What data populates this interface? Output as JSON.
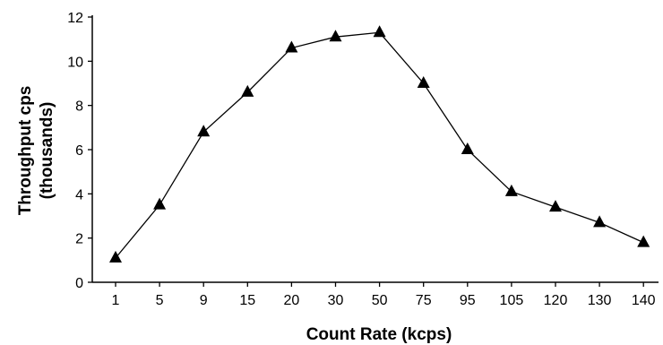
{
  "chart_data": {
    "type": "line",
    "title": "",
    "xlabel": "Count Rate (kcps)",
    "ylabel_line1": "Throughput cps",
    "ylabel_line2": "(thousands)",
    "categories": [
      "1",
      "5",
      "9",
      "15",
      "20",
      "30",
      "50",
      "75",
      "95",
      "105",
      "120",
      "130",
      "140"
    ],
    "values": [
      1.1,
      3.5,
      6.8,
      8.6,
      10.6,
      11.1,
      11.3,
      9.0,
      6.0,
      4.1,
      3.4,
      2.7,
      1.8
    ],
    "ylim": [
      0,
      12
    ],
    "yticks": [
      "0",
      "2",
      "4",
      "6",
      "8",
      "10",
      "12"
    ],
    "grid": false,
    "marker": "triangle",
    "colors": {
      "line": "#000000",
      "marker": "#000000",
      "axis": "#000000"
    }
  }
}
